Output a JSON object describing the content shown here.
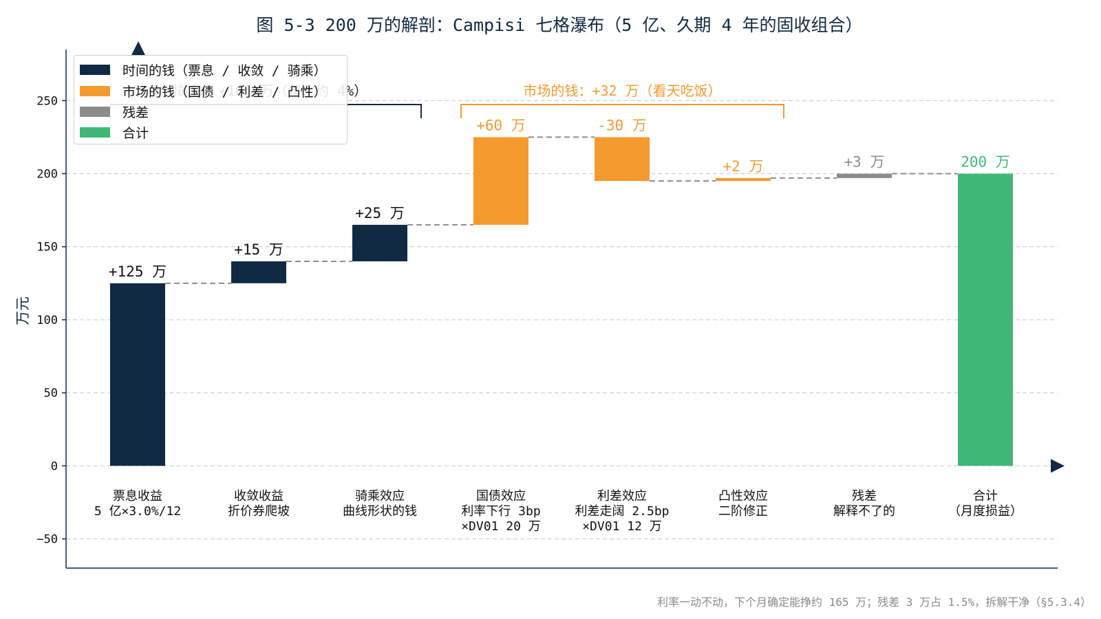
{
  "colors": {
    "time": "#102a43",
    "market": "#f59a2f",
    "residual": "#8c8c8c",
    "total": "#3fb877",
    "axis": "#102a43",
    "grid": "#cfcfcf",
    "connector": "#8c8c8c"
  },
  "chart_data": {
    "type": "bar",
    "subtype": "waterfall",
    "title": "图 5-3 200 万的解剖：Campisi 七格瀑布（5 亿、久期 4 年的固收组合）",
    "ylabel": "万元",
    "ylim": [
      -70,
      285
    ],
    "yticks": [
      -50,
      0,
      50,
      100,
      150,
      200,
      250
    ],
    "grid": "horizontal dashed",
    "legend_position": "top-left",
    "categories": [
      [
        "票息收益",
        "5 亿×3.0%/12"
      ],
      [
        "收敛收益",
        "折价券爬坡"
      ],
      [
        "骑乘效应",
        "曲线形状的钱"
      ],
      [
        "国债效应",
        "利率下行 3bp",
        "×DV01 20 万"
      ],
      [
        "利差效应",
        "利差走阔 2.5bp",
        "×DV01 12 万"
      ],
      [
        "凸性效应",
        "二阶修正"
      ],
      [
        "残差",
        "解释不了的"
      ],
      [
        "合计",
        "（月度损益）"
      ]
    ],
    "values": [
      125,
      15,
      25,
      60,
      -30,
      2,
      3,
      200
    ],
    "groups": [
      "time",
      "time",
      "time",
      "market",
      "market",
      "market",
      "residual",
      "total"
    ],
    "data_labels": [
      "+125 万",
      "+15 万",
      "+25 万",
      "+60 万",
      "-30 万",
      "+2 万",
      "+3 万",
      "200 万"
    ],
    "legend": [
      {
        "key": "time",
        "label": "时间的钱（票息 / 收敛 / 骑乘）"
      },
      {
        "key": "market",
        "label": "市场的钱（国债 / 利差 / 凸性）"
      },
      {
        "key": "residual",
        "label": "残差"
      },
      {
        "key": "total",
        "label": "合计"
      }
    ],
    "annotations": {
      "time_bracket": "时间的钱：+165 万（年化约 4%）",
      "market_bracket": "市场的钱：+32 万（看天吃饭）"
    }
  },
  "footnote": "利率一动不动，下个月确定能挣约 165 万；残差 3 万占 1.5%，拆解干净（§5.3.4）"
}
